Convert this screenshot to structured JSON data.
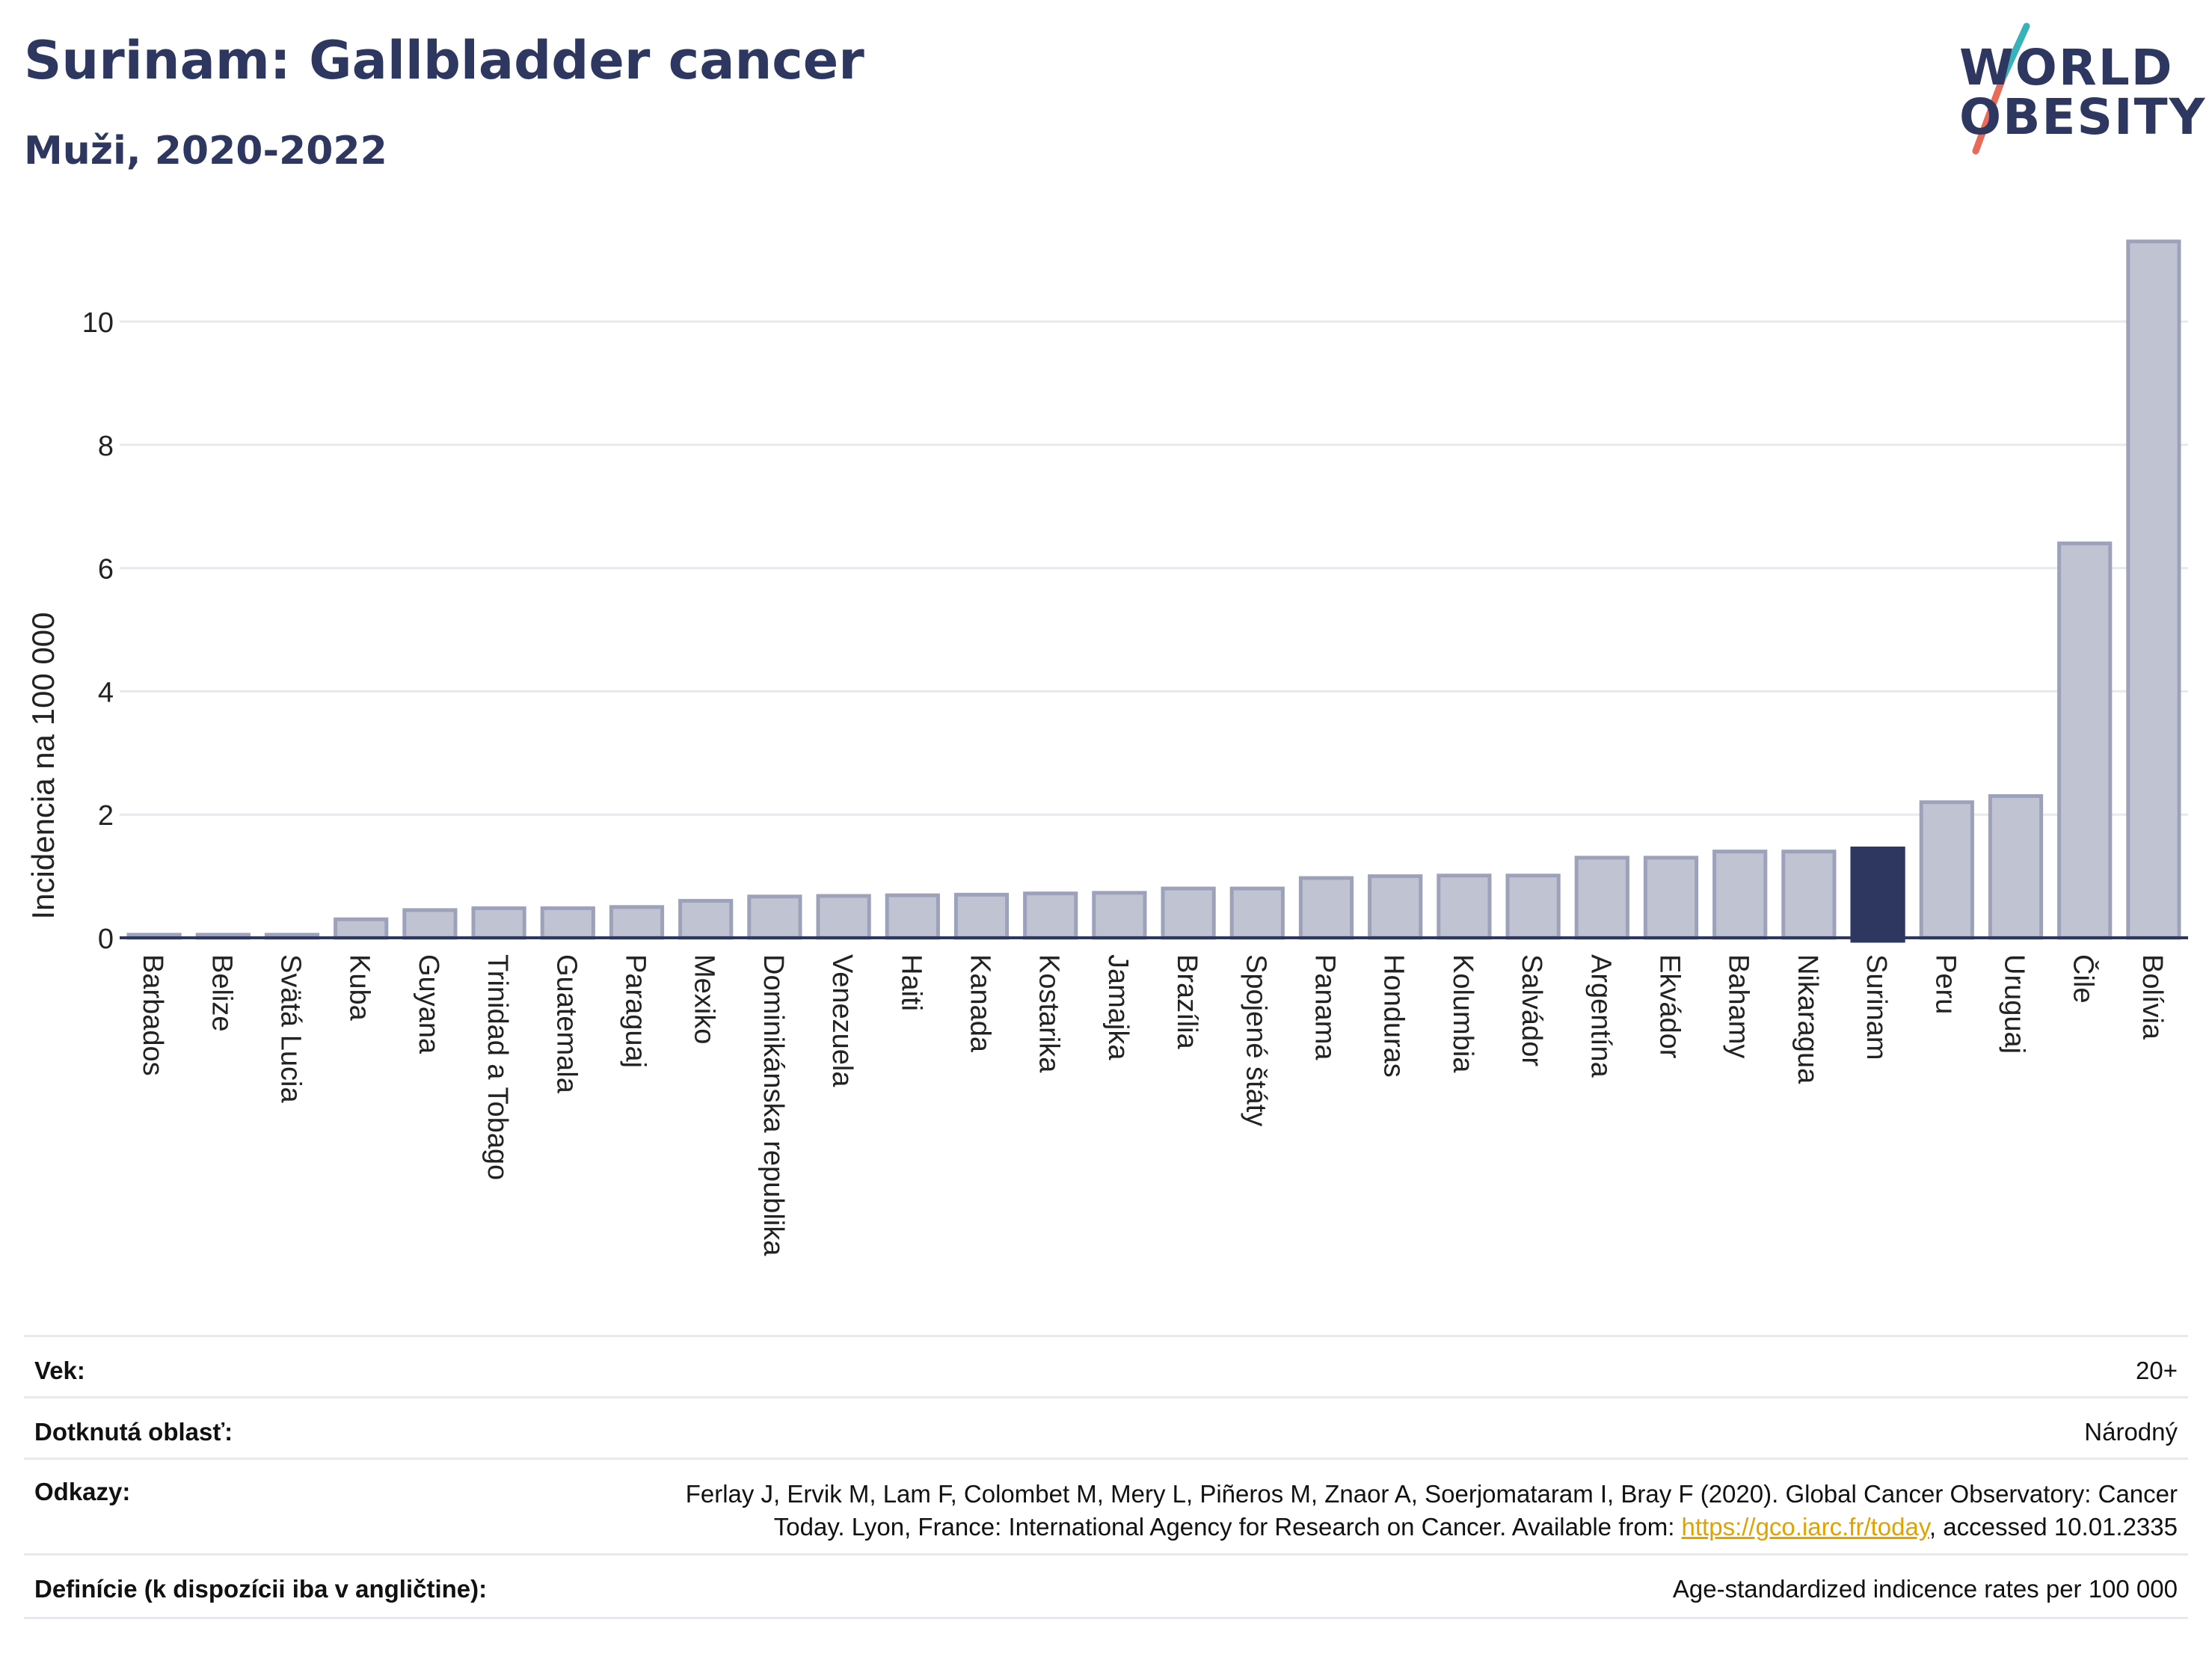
{
  "header": {
    "title": "Surinam: Gallbladder cancer",
    "subtitle": "Muži, 2020-2022"
  },
  "logo": {
    "line1": "WORLD",
    "line2": "OBESITY",
    "colors": {
      "text": "#2d3760",
      "slash_top": "#38b2b8",
      "slash_bottom": "#e86a5a"
    }
  },
  "chart_data": {
    "type": "bar",
    "title": "",
    "xlabel": "",
    "ylabel": "Incidencia na 100 000",
    "ylim": [
      0,
      11.6
    ],
    "yticks": [
      0,
      2,
      4,
      6,
      8,
      10
    ],
    "grid": true,
    "categories": [
      "Barbados",
      "Belize",
      "Svätá Lucia",
      "Kuba",
      "Guyana",
      "Trinidad a Tobago",
      "Guatemala",
      "Paraguaj",
      "Mexiko",
      "Dominikánska republika",
      "Venezuela",
      "Haiti",
      "Kanada",
      "Kostarika",
      "Jamajka",
      "Brazília",
      "Spojené štáty",
      "Panama",
      "Honduras",
      "Kolumbia",
      "Salvádor",
      "Argentína",
      "Ekvádor",
      "Bahamy",
      "Nikaragua",
      "Surinam",
      "Peru",
      "Uruguaj",
      "Čile",
      "Bolívia"
    ],
    "values": [
      0.05,
      0.05,
      0.05,
      0.3,
      0.45,
      0.48,
      0.48,
      0.5,
      0.6,
      0.67,
      0.68,
      0.69,
      0.7,
      0.72,
      0.73,
      0.8,
      0.8,
      0.97,
      1.0,
      1.01,
      1.01,
      1.3,
      1.3,
      1.4,
      1.4,
      1.45,
      2.2,
      2.3,
      6.4,
      11.3
    ],
    "highlight": "Surinam",
    "colors": {
      "bar": "#c0c3d2",
      "bar_stroke": "#9da2ba",
      "highlight": "#2d3760",
      "grid": "#e6e9ee",
      "axis": "#2d3760"
    }
  },
  "meta": {
    "age": {
      "label": "Vek:",
      "value": "20+"
    },
    "area": {
      "label": "Dotknutá oblasť:",
      "value": "Národný"
    },
    "refs": {
      "label": "Odkazy:",
      "line1": "Ferlay J, Ervik M, Lam F, Colombet M, Mery L, Piñeros M, Znaor A, Soerjomataram I, Bray F (2020). Global Cancer Observatory: Cancer",
      "line2_pre": "Today. Lyon, France: International Agency for Research on Cancer. Available from: ",
      "link": "https://gco.iarc.fr/today",
      "line2_post": ", accessed 10.01.2335"
    },
    "definitions": {
      "label": "Definície (k dispozícii iba v angličtine):",
      "value": "Age-standardized indicence rates per 100 000"
    }
  }
}
